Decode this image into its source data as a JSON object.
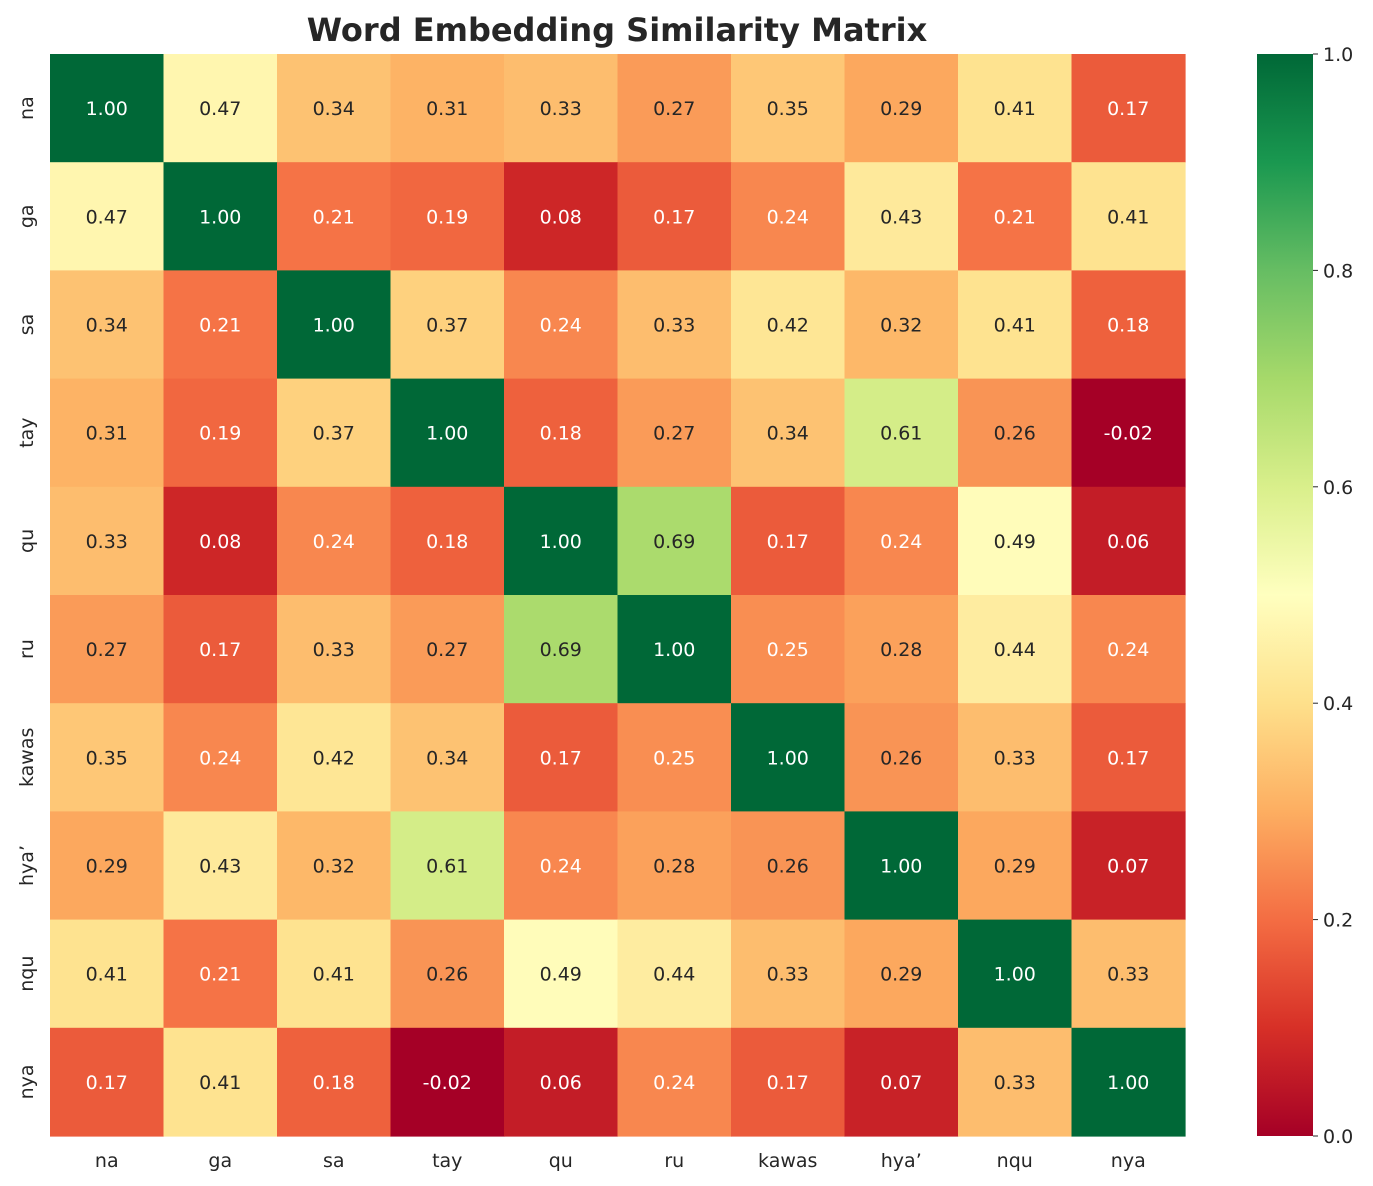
{
  "chart_data": {
    "type": "heatmap",
    "title": "Word Embedding Similarity Matrix",
    "xlabel": "",
    "ylabel": "",
    "labels": [
      "na",
      "ga",
      "sa",
      "tay",
      "qu",
      "ru",
      "kawas",
      "hya’",
      "nqu",
      "nya"
    ],
    "values": [
      [
        1.0,
        0.47,
        0.34,
        0.31,
        0.33,
        0.27,
        0.35,
        0.29,
        0.41,
        0.17
      ],
      [
        0.47,
        1.0,
        0.21,
        0.19,
        0.08,
        0.17,
        0.24,
        0.43,
        0.21,
        0.41
      ],
      [
        0.34,
        0.21,
        1.0,
        0.37,
        0.24,
        0.33,
        0.42,
        0.32,
        0.41,
        0.18
      ],
      [
        0.31,
        0.19,
        0.37,
        1.0,
        0.18,
        0.27,
        0.34,
        0.61,
        0.26,
        -0.02
      ],
      [
        0.33,
        0.08,
        0.24,
        0.18,
        1.0,
        0.69,
        0.17,
        0.24,
        0.49,
        0.06
      ],
      [
        0.27,
        0.17,
        0.33,
        0.27,
        0.69,
        1.0,
        0.25,
        0.28,
        0.44,
        0.24
      ],
      [
        0.35,
        0.24,
        0.42,
        0.34,
        0.17,
        0.25,
        1.0,
        0.26,
        0.33,
        0.17
      ],
      [
        0.29,
        0.43,
        0.32,
        0.61,
        0.24,
        0.28,
        0.26,
        1.0,
        0.29,
        0.07
      ],
      [
        0.41,
        0.21,
        0.41,
        0.26,
        0.49,
        0.44,
        0.33,
        0.29,
        1.0,
        0.33
      ],
      [
        0.17,
        0.41,
        0.18,
        -0.02,
        0.06,
        0.24,
        0.17,
        0.07,
        0.33,
        1.0
      ]
    ],
    "value_format": "0.00",
    "colormap": "RdYlGn",
    "vmin": 0.0,
    "vmax": 1.0,
    "colorbar_ticks": [
      "0.0",
      "0.2",
      "0.4",
      "0.6",
      "0.8",
      "1.0"
    ],
    "grid": false,
    "legend": "colorbar-right"
  }
}
